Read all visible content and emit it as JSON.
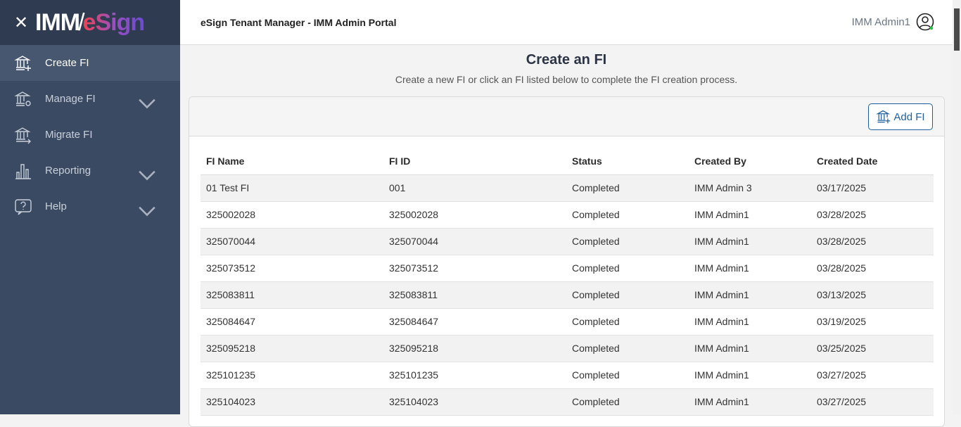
{
  "sidebar": {
    "logo": {
      "left": "IMM",
      "right": "eSign"
    },
    "items": [
      {
        "label": "Create FI",
        "icon": "bank-plus-icon",
        "active": true
      },
      {
        "label": "Manage FI",
        "icon": "bank-gear-icon",
        "expandable": true
      },
      {
        "label": "Migrate FI",
        "icon": "bank-arrow-icon"
      },
      {
        "label": "Reporting",
        "icon": "bar-chart-icon",
        "expandable": true
      },
      {
        "label": "Help",
        "icon": "help-bubble-icon",
        "expandable": true
      }
    ]
  },
  "header": {
    "title": "eSign Tenant Manager - IMM Admin Portal",
    "user": "IMM Admin1",
    "status_color": "#2fbf4a"
  },
  "main": {
    "title": "Create an FI",
    "subtitle": "Create a new FI or click an FI listed below to complete the FI creation process.",
    "add_button": "Add FI",
    "columns": [
      "FI Name",
      "FI ID",
      "Status",
      "Created By",
      "Created Date"
    ],
    "rows": [
      [
        "01 Test FI",
        "001",
        "Completed",
        "IMM Admin 3",
        "03/17/2025"
      ],
      [
        "325002028",
        "325002028",
        "Completed",
        "IMM Admin1",
        "03/28/2025"
      ],
      [
        "325070044",
        "325070044",
        "Completed",
        "IMM Admin1",
        "03/28/2025"
      ],
      [
        "325073512",
        "325073512",
        "Completed",
        "IMM Admin1",
        "03/28/2025"
      ],
      [
        "325083811",
        "325083811",
        "Completed",
        "IMM Admin1",
        "03/13/2025"
      ],
      [
        "325084647",
        "325084647",
        "Completed",
        "IMM Admin1",
        "03/19/2025"
      ],
      [
        "325095218",
        "325095218",
        "Completed",
        "IMM Admin1",
        "03/25/2025"
      ],
      [
        "325101235",
        "325101235",
        "Completed",
        "IMM Admin1",
        "03/27/2025"
      ],
      [
        "325104023",
        "325104023",
        "Completed",
        "IMM Admin1",
        "03/27/2025"
      ]
    ]
  }
}
